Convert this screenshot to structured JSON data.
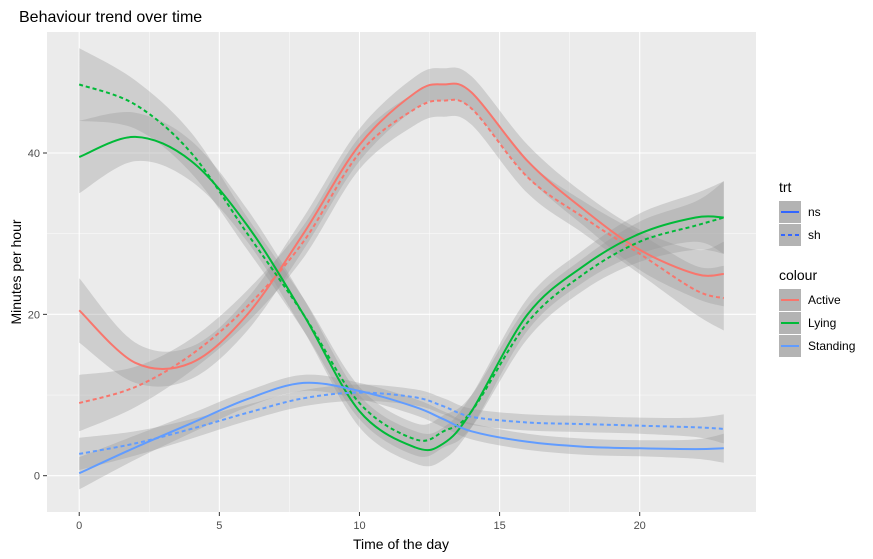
{
  "chart_data": {
    "type": "line",
    "title": "Behaviour trend over time",
    "xlabel": "Time of the day",
    "ylabel": "Minutes per hour",
    "xlim": [
      -1.15,
      24.15
    ],
    "ylim": [
      -4.5,
      55
    ],
    "x_ticks": [
      "0",
      "5",
      "10",
      "15",
      "20"
    ],
    "y_ticks": [
      "0",
      "20",
      "40"
    ],
    "x_tick_values": [
      0,
      5,
      10,
      15,
      20
    ],
    "y_tick_values": [
      0,
      20,
      40
    ],
    "grid": true,
    "panel_background": "#ebebeb",
    "ribbon_color": "#999999",
    "legend_position": "right",
    "legends": [
      {
        "title": "trt",
        "entries": [
          {
            "label": "ns",
            "linetype": "solid",
            "color": "#3366ff"
          },
          {
            "label": "sh",
            "linetype": "dashed",
            "color": "#3366ff"
          }
        ]
      },
      {
        "title": "colour",
        "entries": [
          {
            "label": "Active",
            "linetype": "solid",
            "color": "#f8766d"
          },
          {
            "label": "Lying",
            "linetype": "solid",
            "color": "#00ba38"
          },
          {
            "label": "Standing",
            "linetype": "solid",
            "color": "#619cff"
          }
        ]
      }
    ],
    "x": [
      0,
      2,
      4,
      6,
      8,
      10,
      12,
      13,
      14,
      16,
      18,
      20,
      22,
      23
    ],
    "series": [
      {
        "colour": "Active",
        "trt": "ns",
        "color": "#f8766d",
        "dash": "solid",
        "values": [
          20.5,
          14,
          14,
          20,
          30,
          41,
          47.5,
          48.5,
          47.5,
          39,
          33,
          28,
          25,
          25
        ],
        "band": [
          4,
          2.5,
          2,
          2,
          2,
          2,
          2,
          2,
          2,
          2,
          2,
          2.5,
          3,
          4
        ]
      },
      {
        "colour": "Active",
        "trt": "sh",
        "color": "#f8766d",
        "dash": "dashed",
        "values": [
          9,
          11,
          15,
          21,
          29,
          40,
          45.5,
          46.5,
          45.5,
          37,
          32,
          27.5,
          23,
          22
        ],
        "band": [
          3.5,
          2.5,
          2,
          2,
          2,
          2,
          2,
          2,
          2,
          2,
          2,
          2.5,
          3,
          4
        ]
      },
      {
        "colour": "Lying",
        "trt": "ns",
        "color": "#00ba38",
        "dash": "solid",
        "values": [
          39.5,
          42,
          39,
          31,
          20,
          8,
          3.5,
          4,
          8,
          20,
          26,
          30,
          32,
          32
        ],
        "band": [
          4.5,
          3,
          2.5,
          2,
          2,
          2,
          2,
          2,
          2,
          2,
          2,
          2.5,
          3,
          4.5
        ]
      },
      {
        "colour": "Lying",
        "trt": "sh",
        "color": "#00ba38",
        "dash": "dashed",
        "values": [
          48.5,
          46,
          40,
          30,
          20,
          9,
          4.5,
          5.5,
          8,
          19,
          25,
          29,
          31,
          32
        ],
        "band": [
          4.5,
          3,
          2.5,
          2,
          2,
          2,
          2,
          2,
          2,
          2,
          2,
          2.5,
          3,
          4.5
        ]
      },
      {
        "colour": "Standing",
        "trt": "ns",
        "color": "#619cff",
        "dash": "solid",
        "values": [
          0.3,
          3.5,
          6.5,
          9.5,
          11.5,
          10.5,
          8.5,
          7,
          5.5,
          4.2,
          3.6,
          3.4,
          3.3,
          3.4
        ],
        "band": [
          2,
          1.5,
          1.2,
          1,
          1,
          1,
          1,
          1,
          1,
          1,
          1,
          1,
          1.2,
          1.8
        ]
      },
      {
        "colour": "Standing",
        "trt": "sh",
        "color": "#619cff",
        "dash": "dashed",
        "values": [
          2.7,
          4,
          5.8,
          7.8,
          9.6,
          10.3,
          9.7,
          8.6,
          7.3,
          6.6,
          6.4,
          6.2,
          6,
          5.8
        ],
        "band": [
          2,
          1.5,
          1.2,
          1,
          1,
          1,
          1,
          1,
          1,
          1,
          1,
          1,
          1.2,
          1.8
        ]
      }
    ]
  }
}
